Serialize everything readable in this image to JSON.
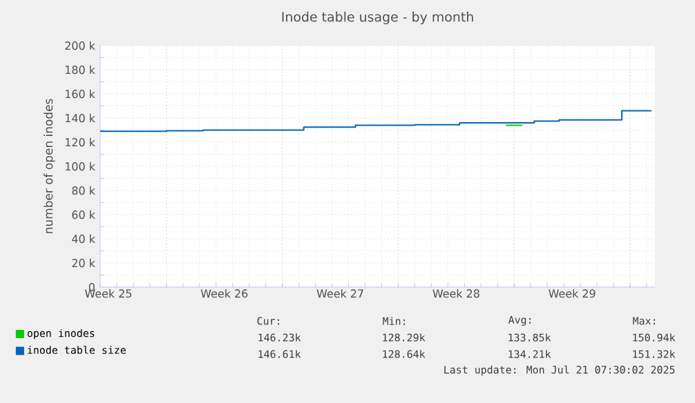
{
  "chart_data": {
    "type": "step",
    "title": "Inode table usage - by month",
    "ylabel": "number of open inodes",
    "xlim": [
      "2025-06-19",
      "2025-07-22T12:00"
    ],
    "ylim": [
      0,
      200000
    ],
    "xticks": [
      {
        "value": "2025-06-19T12:00",
        "label": "Week 25"
      },
      {
        "value": "2025-06-23",
        "label": null
      },
      {
        "value": "2025-06-26T12:00",
        "label": "Week 26"
      },
      {
        "value": "2025-06-30",
        "label": null
      },
      {
        "value": "2025-07-03T12:00",
        "label": "Week 27"
      },
      {
        "value": "2025-07-07",
        "label": null
      },
      {
        "value": "2025-07-10T12:00",
        "label": "Week 28"
      },
      {
        "value": "2025-07-14",
        "label": null
      },
      {
        "value": "2025-07-17T12:00",
        "label": "Week 29"
      },
      {
        "value": "2025-07-21",
        "label": null
      }
    ],
    "yticks": [
      {
        "value": 0,
        "label": "0"
      },
      {
        "value": 20000,
        "label": "20 k"
      },
      {
        "value": 40000,
        "label": "40 k"
      },
      {
        "value": 60000,
        "label": "60 k"
      },
      {
        "value": 80000,
        "label": "80 k"
      },
      {
        "value": 100000,
        "label": "100 k"
      },
      {
        "value": 120000,
        "label": "120 k"
      },
      {
        "value": 140000,
        "label": "140 k"
      },
      {
        "value": 160000,
        "label": "160 k"
      },
      {
        "value": 180000,
        "label": "180 k"
      },
      {
        "value": 200000,
        "label": "200 k"
      }
    ],
    "grid": true,
    "legend": "bottom left",
    "series": [
      {
        "name": "open inodes",
        "color": "#00cc00",
        "x": [
          "2025-07-13T12:00",
          "2025-07-14T12:00"
        ],
        "values": [
          134000,
          134000
        ]
      },
      {
        "name": "inode table size",
        "color": "#0066b3",
        "x": [
          "2025-06-19",
          "2025-06-23",
          "2025-06-25T05:00",
          "2025-07-01T07:00",
          "2025-07-04T10:00",
          "2025-07-08",
          "2025-07-10T17:00",
          "2025-07-15T05:00",
          "2025-07-16T17:00",
          "2025-07-20T12:00",
          "2025-07-22T07:00"
        ],
        "values": [
          129000,
          129500,
          130000,
          132500,
          134000,
          134500,
          136000,
          137500,
          138500,
          146000,
          146000
        ]
      }
    ],
    "annotations": [
      "Cur:",
      "Min:",
      "Avg:",
      "Max:",
      "146.23k",
      "128.29k",
      "133.85k",
      "150.94k",
      "146.61k",
      "128.64k",
      "134.21k",
      "151.32k",
      "Last update: Mon Jul 21 07:30:02 2025"
    ]
  }
}
